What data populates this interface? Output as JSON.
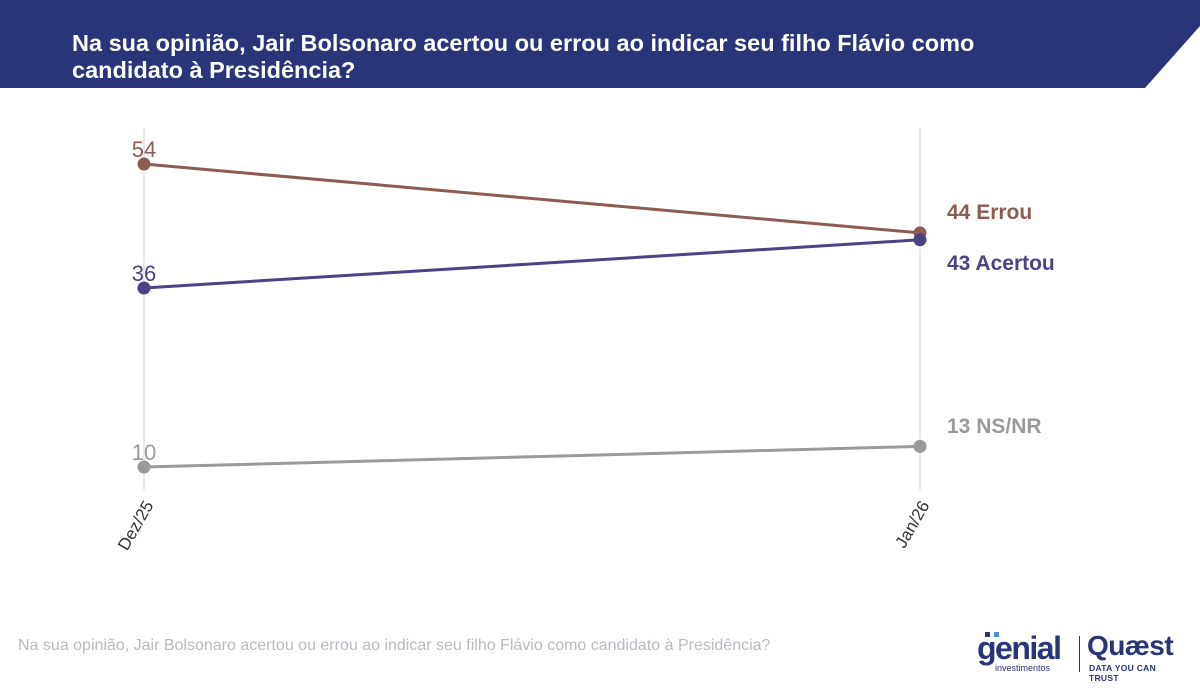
{
  "header": {
    "title": "Na sua opinião, Jair Bolsonaro acertou ou errou ao indicar seu filho Flávio como candidato à Presidência?"
  },
  "footer": {
    "note": "Na sua opinião, Jair Bolsonaro acertou ou errou ao indicar seu filho Flávio como candidato à Presidência?",
    "logo_genial": "genial",
    "logo_genial_sub": "investimentos",
    "logo_quaest": "Quæst",
    "logo_quaest_sub": "DATA YOU CAN TRUST"
  },
  "colors": {
    "header_bg": "#2a3478",
    "errou": "#8c5c52",
    "acertou": "#4b4386",
    "nsnr": "#9a9a9a",
    "gridline": "#e2e2e2",
    "footnote": "#b9b9c2"
  },
  "chart_data": {
    "type": "line",
    "title": "Na sua opinião, Jair Bolsonaro acertou ou errou ao indicar seu filho Flávio como candidato à Presidência?",
    "categories": [
      "Dez/25",
      "Jan/26"
    ],
    "ylim": [
      0,
      60
    ],
    "grid": "vertical",
    "series": [
      {
        "name": "Errou",
        "values": [
          54,
          44
        ],
        "start_label": "54",
        "end_label": "44 Errou",
        "color_key": "errou"
      },
      {
        "name": "Acertou",
        "values": [
          36,
          43
        ],
        "start_label": "36",
        "end_label": "43 Acertou",
        "color_key": "acertou"
      },
      {
        "name": "NS/NR",
        "values": [
          10,
          13
        ],
        "start_label": "10",
        "end_label": "13 NS/NR",
        "color_key": "nsnr"
      }
    ]
  }
}
